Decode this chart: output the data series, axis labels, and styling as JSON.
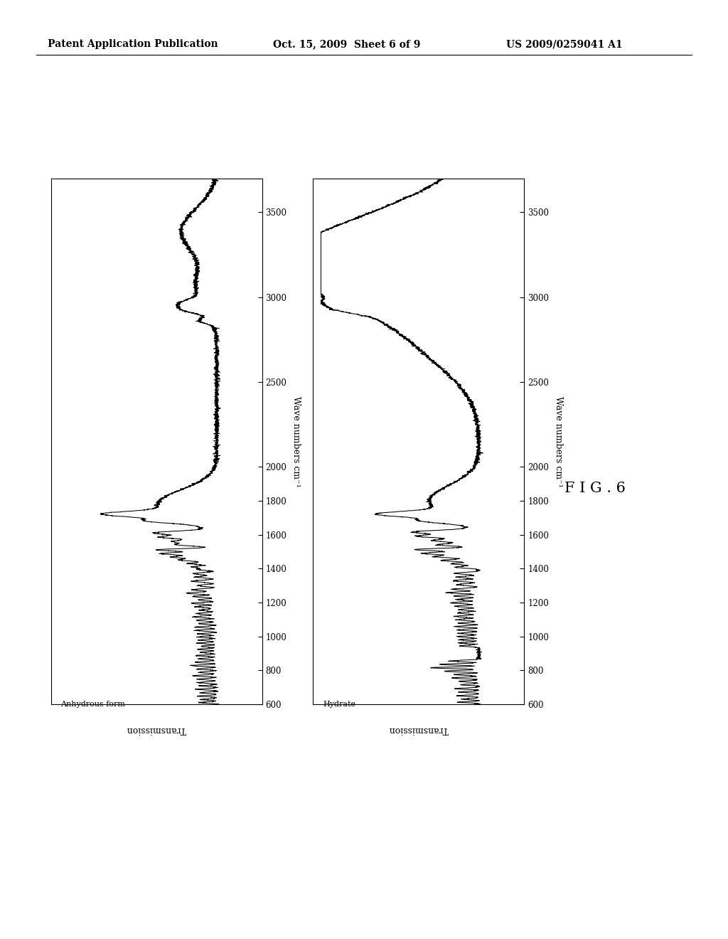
{
  "header_left": "Patent Application Publication",
  "header_mid": "Oct. 15, 2009  Sheet 6 of 9",
  "header_right": "US 2009/0259041 A1",
  "fig_label": "F I G . 6",
  "top_label": "Anhydrous form",
  "bottom_label": "Hydrate",
  "xlabel": "Wave numbers cm⁻¹",
  "ylabel": "Transmission",
  "xmin": 500,
  "xmax": 3700,
  "background_color": "#ffffff",
  "line_color": "#000000",
  "header_fontsize": 10,
  "axis_label_fontsize": 9,
  "tick_label_fontsize": 8.5,
  "fig_label_fontsize": 15,
  "panel_label_fontsize": 8
}
